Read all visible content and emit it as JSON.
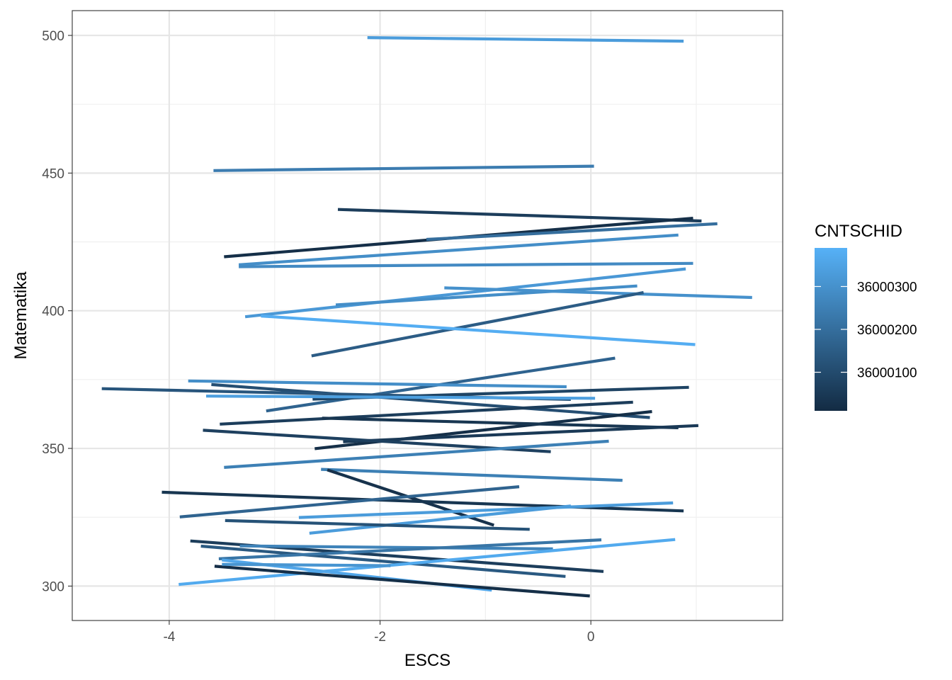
{
  "chart_data": {
    "type": "line",
    "xlabel": "ESCS",
    "ylabel": "Matematika",
    "xlim": [
      -4.92,
      1.82
    ],
    "ylim": [
      287.5,
      509.0
    ],
    "x_ticks": [
      -4,
      -2,
      0
    ],
    "y_ticks": [
      300,
      350,
      400,
      450,
      500
    ],
    "x_tick_labels": [
      "-4",
      "-2",
      "0"
    ],
    "y_tick_labels": [
      "300",
      "350",
      "400",
      "450",
      "500"
    ],
    "grid": true,
    "legend": {
      "title": "CNTSCHID",
      "position": "right",
      "type": "colorbar",
      "range": [
        36000010,
        36000390
      ],
      "breaks": [
        36000300,
        36000200,
        36000100
      ],
      "break_labels": [
        "36000300",
        "36000200",
        "36000100"
      ],
      "color_low": "#132B43",
      "color_high": "#56B1F7"
    },
    "series": [
      {
        "color_value": 36000330,
        "x": [
          -2.12,
          0.88
        ],
        "y": [
          499.2,
          497.9
        ]
      },
      {
        "color_value": 36000240,
        "x": [
          -3.58,
          0.03
        ],
        "y": [
          450.9,
          452.5
        ]
      },
      {
        "color_value": 36000060,
        "x": [
          -2.4,
          1.05
        ],
        "y": [
          436.8,
          432.6
        ]
      },
      {
        "color_value": 36000020,
        "x": [
          -3.48,
          0.97
        ],
        "y": [
          419.6,
          433.6
        ]
      },
      {
        "color_value": 36000200,
        "x": [
          -1.56,
          1.2
        ],
        "y": [
          425.9,
          431.6
        ]
      },
      {
        "color_value": 36000290,
        "x": [
          -3.34,
          0.83
        ],
        "y": [
          416.7,
          427.5
        ]
      },
      {
        "color_value": 36000280,
        "x": [
          -3.34,
          0.97
        ],
        "y": [
          416.0,
          417.2
        ]
      },
      {
        "color_value": 36000320,
        "x": [
          -3.28,
          0.9
        ],
        "y": [
          397.8,
          415.2
        ]
      },
      {
        "color_value": 36000290,
        "x": [
          -2.42,
          0.44
        ],
        "y": [
          402.1,
          409.0
        ]
      },
      {
        "color_value": 36000300,
        "x": [
          -1.39,
          1.53
        ],
        "y": [
          408.3,
          404.8
        ]
      },
      {
        "color_value": 36000150,
        "x": [
          -2.65,
          0.5
        ],
        "y": [
          383.6,
          406.6
        ]
      },
      {
        "color_value": 36000380,
        "x": [
          -3.13,
          0.99
        ],
        "y": [
          398.1,
          387.7
        ]
      },
      {
        "color_value": 36000170,
        "x": [
          -3.08,
          0.23
        ],
        "y": [
          363.6,
          382.8
        ]
      },
      {
        "color_value": 36000290,
        "x": [
          -3.82,
          -0.23
        ],
        "y": [
          374.5,
          372.4
        ]
      },
      {
        "color_value": 36000110,
        "x": [
          -3.6,
          0.56
        ],
        "y": [
          373.2,
          361.2
        ]
      },
      {
        "color_value": 36000130,
        "x": [
          -4.64,
          -0.19
        ],
        "y": [
          371.7,
          367.8
        ]
      },
      {
        "color_value": 36000080,
        "x": [
          -2.64,
          0.93
        ],
        "y": [
          367.9,
          372.2
        ]
      },
      {
        "color_value": 36000340,
        "x": [
          -3.65,
          0.04
        ],
        "y": [
          369.0,
          368.2
        ]
      },
      {
        "color_value": 36000060,
        "x": [
          -3.52,
          0.4
        ],
        "y": [
          358.8,
          366.8
        ]
      },
      {
        "color_value": 36000020,
        "x": [
          -2.62,
          0.58
        ],
        "y": [
          349.9,
          363.4
        ]
      },
      {
        "color_value": 36000040,
        "x": [
          -2.55,
          0.83
        ],
        "y": [
          361.0,
          357.5
        ]
      },
      {
        "color_value": 36000050,
        "x": [
          -2.35,
          1.02
        ],
        "y": [
          352.4,
          358.3
        ]
      },
      {
        "color_value": 36000070,
        "x": [
          -3.68,
          -0.38
        ],
        "y": [
          356.6,
          348.8
        ]
      },
      {
        "color_value": 36000250,
        "x": [
          -3.48,
          0.17
        ],
        "y": [
          343.1,
          352.6
        ]
      },
      {
        "color_value": 36000250,
        "x": [
          -2.56,
          0.3
        ],
        "y": [
          342.4,
          338.4
        ]
      },
      {
        "color_value": 36000030,
        "x": [
          -2.5,
          -0.92
        ],
        "y": [
          342.2,
          322.1
        ]
      },
      {
        "color_value": 36000040,
        "x": [
          -4.07,
          0.88
        ],
        "y": [
          334.1,
          327.3
        ]
      },
      {
        "color_value": 36000170,
        "x": [
          -3.9,
          -0.68
        ],
        "y": [
          325.1,
          336.1
        ]
      },
      {
        "color_value": 36000330,
        "x": [
          -2.77,
          0.78
        ],
        "y": [
          324.9,
          330.2
        ]
      },
      {
        "color_value": 36000330,
        "x": [
          -2.67,
          -0.19
        ],
        "y": [
          319.2,
          329.1
        ]
      },
      {
        "color_value": 36000120,
        "x": [
          -3.47,
          -0.58
        ],
        "y": [
          323.8,
          320.6
        ]
      },
      {
        "color_value": 36000060,
        "x": [
          -3.8,
          0.12
        ],
        "y": [
          316.4,
          305.3
        ]
      },
      {
        "color_value": 36000140,
        "x": [
          -3.7,
          -0.24
        ],
        "y": [
          314.5,
          303.5
        ]
      },
      {
        "color_value": 36000260,
        "x": [
          -3.33,
          -0.36
        ],
        "y": [
          314.6,
          313.5
        ]
      },
      {
        "color_value": 36000220,
        "x": [
          -3.53,
          0.1
        ],
        "y": [
          309.9,
          316.8
        ]
      },
      {
        "color_value": 36000370,
        "x": [
          -3.91,
          0.8
        ],
        "y": [
          300.6,
          316.9
        ]
      },
      {
        "color_value": 36000360,
        "x": [
          -3.5,
          -0.94
        ],
        "y": [
          309.5,
          298.5
        ]
      },
      {
        "color_value": 36000020,
        "x": [
          -3.57,
          -0.01
        ],
        "y": [
          307.2,
          296.4
        ]
      },
      {
        "color_value": 36000310,
        "x": [
          -3.5,
          -1.9
        ],
        "y": [
          307.9,
          307.4
        ]
      }
    ]
  }
}
